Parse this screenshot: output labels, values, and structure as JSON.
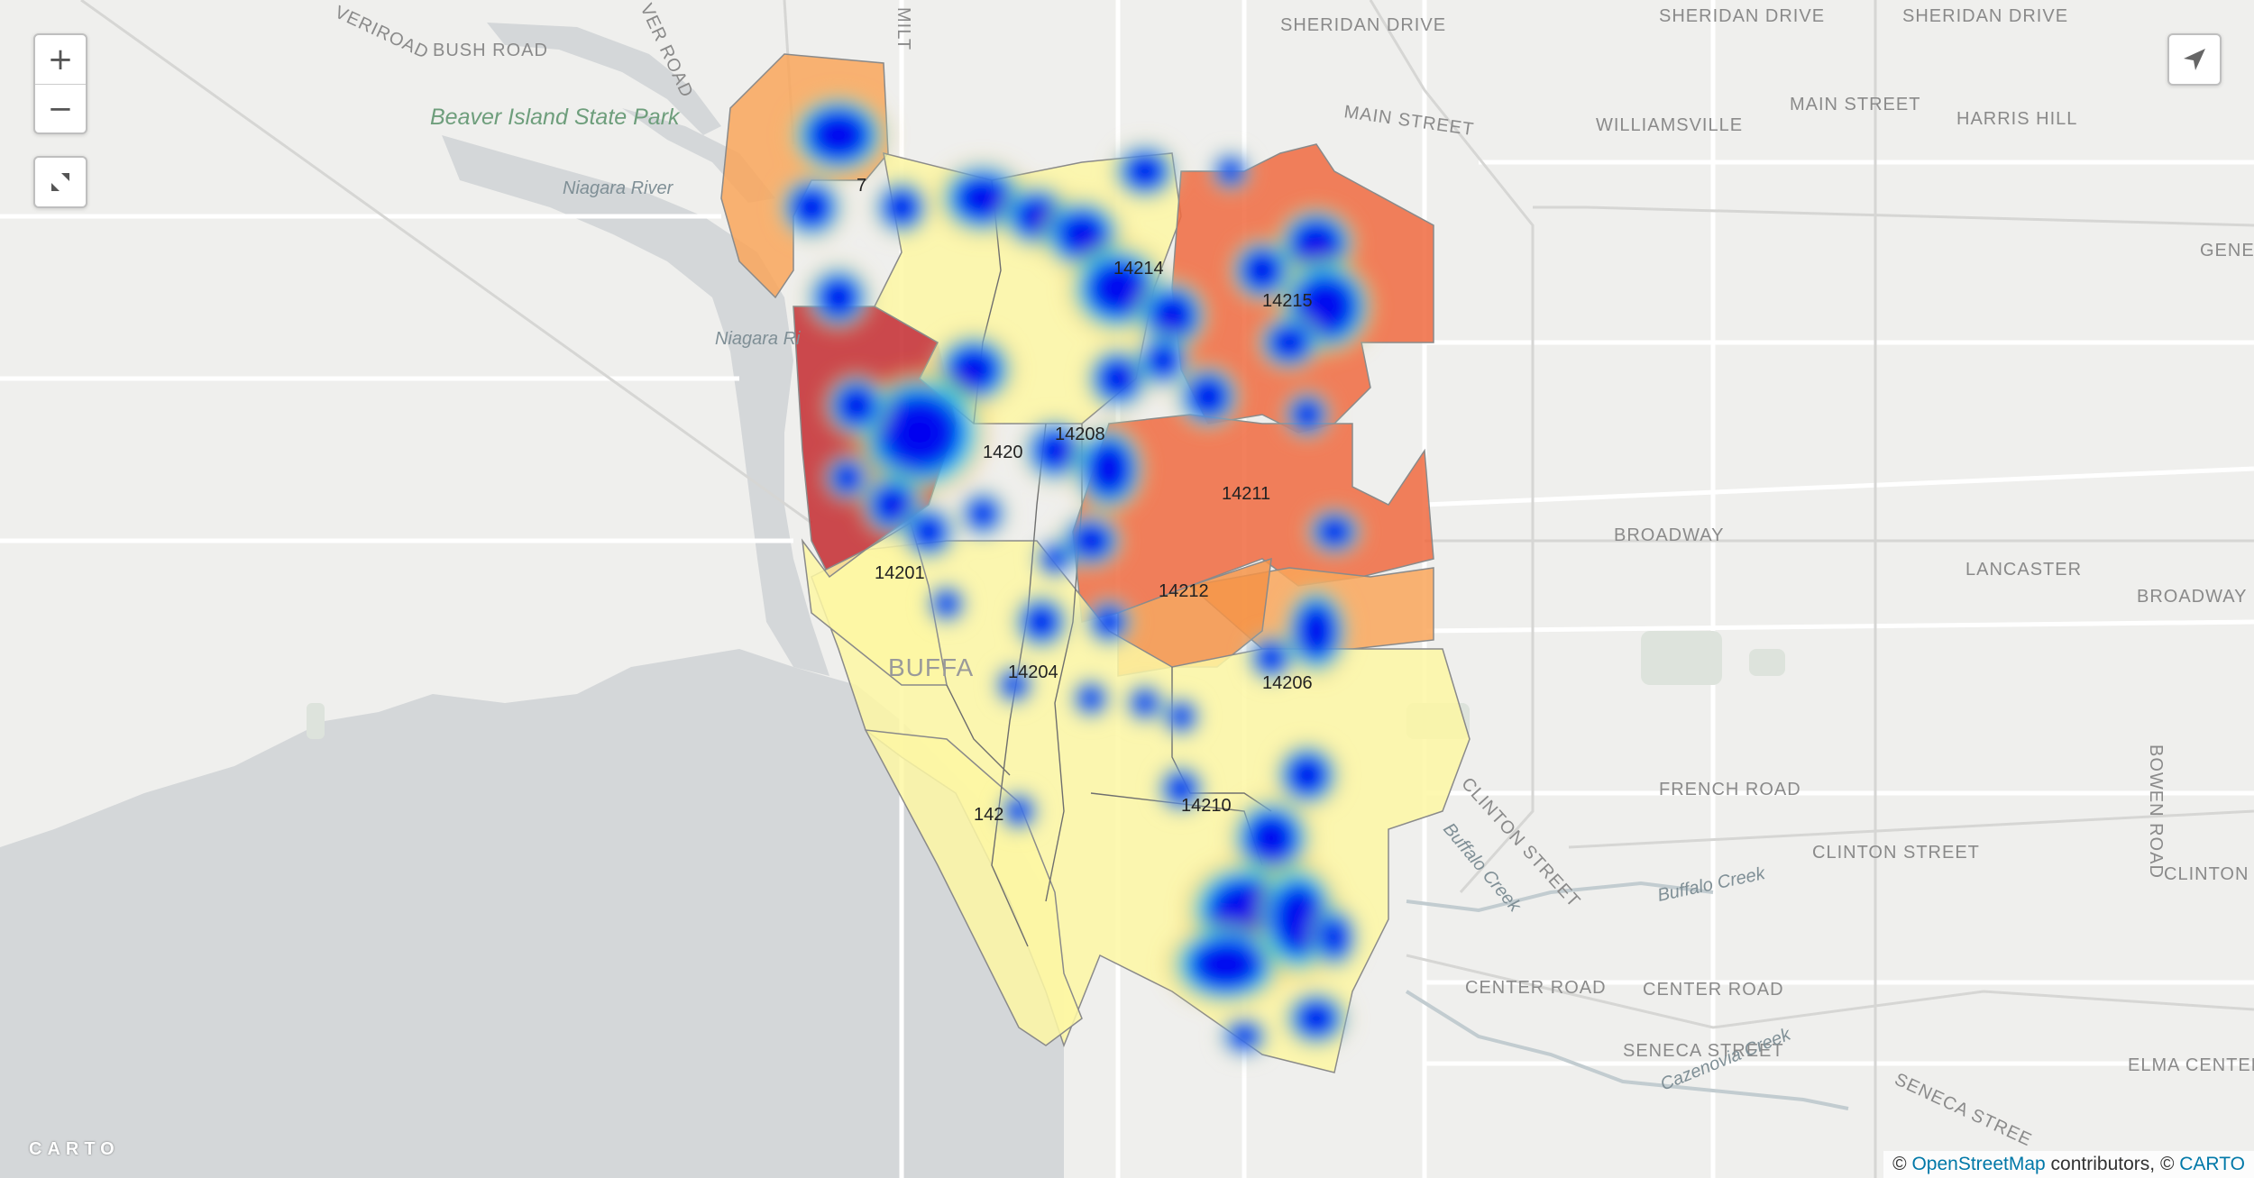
{
  "map": {
    "zoom_controls": {
      "zoom_in": "+",
      "zoom_out": "−"
    },
    "fullscreen_icon": "fullscreen-icon",
    "locate_icon": "locate-arrow-icon",
    "logo": "CARTO",
    "attribution": {
      "prefix": "© ",
      "osm": "OpenStreetMap",
      "middle": " contributors, © ",
      "carto": "CARTO"
    },
    "legend_colors": {
      "low": "#fdf7a3",
      "mid": "#f9a65a",
      "high": "#c42a2f",
      "heat_core": "#0000f0",
      "heat_edge": "#00e8f0"
    },
    "street_labels": {
      "sheridan1": "SHERIDAN DRIVE",
      "sheridan2": "SHERIDAN DRIVE",
      "sheridan3": "SHERIDAN DRIVE",
      "main1": "MAIN STREET",
      "main2": "MAIN STREET",
      "williamsville": "WILLIAMSVILLE",
      "harris": "HARRIS HILL",
      "bush": "BUSH ROAD",
      "riveroad": "VERIROAD",
      "riverroad2": "VER ROAD",
      "mil": "MILT",
      "broadway1": "BROADWAY",
      "broadway2": "BROADWAY",
      "lancaster": "LANCASTER",
      "french": "FRENCH ROAD",
      "clinton1": "CLINTON STREET",
      "clinton2": "CLINTON STREET",
      "clinton3": "CLINTON",
      "center1": "CENTER ROAD",
      "center2": "CENTER ROAD",
      "seneca1": "SENECA STREET",
      "seneca2": "SENECA STREE",
      "elma": "ELMA CENTER",
      "bowen": "BOWEN ROAD",
      "gene": "GENE",
      "buffalo": "BUFFA"
    },
    "water_labels": {
      "niagara1": "Niagara River",
      "niagara2": "Niagara Ri",
      "buffalo_creek1": "Buffalo Creek",
      "buffalo_creek2": "Buffalo Creek",
      "cazenovia": "Cazenovia Creek"
    },
    "park_labels": {
      "beaver": "Beaver Island State Park"
    },
    "zip_labels": {
      "z14201": "14201",
      "z14202": "1420",
      "z14208": "14208",
      "z14207": "7",
      "z14211": "14211",
      "z14212": "14212",
      "z14204": "14204",
      "z14206": "14206",
      "z14210": "14210",
      "z14203": "142",
      "z14214": "14214",
      "z14215": "14215"
    }
  }
}
